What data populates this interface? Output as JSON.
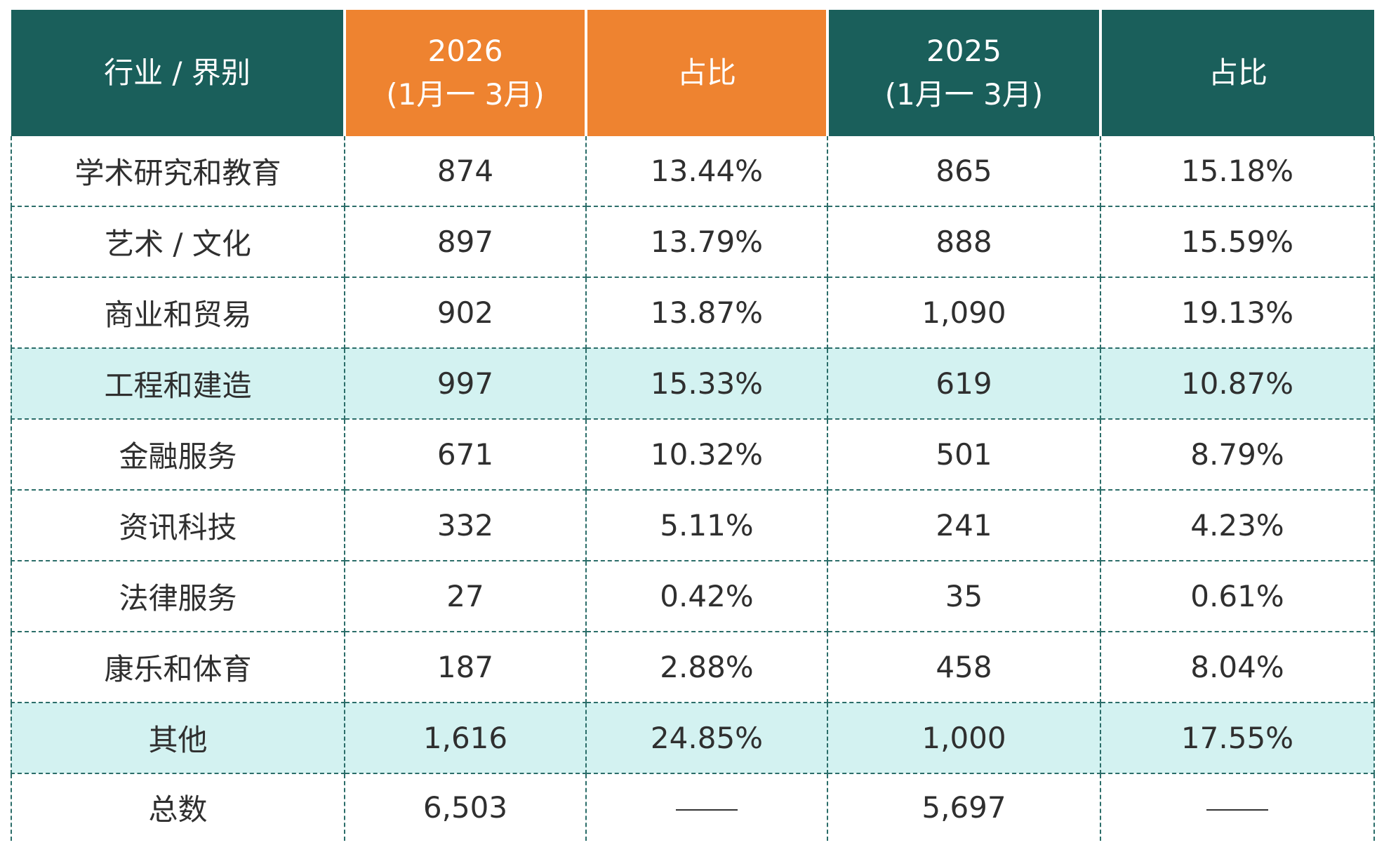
{
  "table": {
    "headers": {
      "category": "行业 / 界别",
      "year_a": "2026",
      "year_a_period": "(1月一 3月)",
      "share_a": "占比",
      "year_b": "2025",
      "year_b_period": "(1月一 3月)",
      "share_b": "占比"
    },
    "rows": [
      {
        "category": "学术研究和教育",
        "a_count": "874",
        "a_share": "13.44%",
        "b_count": "865",
        "b_share": "15.18%",
        "highlighted": false
      },
      {
        "category": "艺术 / 文化",
        "a_count": "897",
        "a_share": "13.79%",
        "b_count": "888",
        "b_share": "15.59%",
        "highlighted": false
      },
      {
        "category": "商业和贸易",
        "a_count": "902",
        "a_share": "13.87%",
        "b_count": "1,090",
        "b_share": "19.13%",
        "highlighted": false
      },
      {
        "category": "工程和建造",
        "a_count": "997",
        "a_share": "15.33%",
        "b_count": "619",
        "b_share": "10.87%",
        "highlighted": true
      },
      {
        "category": "金融服务",
        "a_count": "671",
        "a_share": "10.32%",
        "b_count": "501",
        "b_share": "8.79%",
        "highlighted": false
      },
      {
        "category": "资讯科技",
        "a_count": "332",
        "a_share": "5.11%",
        "b_count": "241",
        "b_share": "4.23%",
        "highlighted": false
      },
      {
        "category": "法律服务",
        "a_count": "27",
        "a_share": "0.42%",
        "b_count": "35",
        "b_share": "0.61%",
        "highlighted": false
      },
      {
        "category": "康乐和体育",
        "a_count": "187",
        "a_share": "2.88%",
        "b_count": "458",
        "b_share": "8.04%",
        "highlighted": false
      },
      {
        "category": "其他",
        "a_count": "1,616",
        "a_share": "24.85%",
        "b_count": "1,000",
        "b_share": "17.55%",
        "highlighted": true
      }
    ],
    "total": {
      "label": "总数",
      "a_count": "6,503",
      "a_share": "——",
      "b_count": "5,697",
      "b_share": "——"
    }
  },
  "colors": {
    "header_green": "#1a5f5b",
    "header_orange": "#ee8330",
    "highlight_row": "#d3f2f1",
    "grid_line": "#2b6d69"
  }
}
